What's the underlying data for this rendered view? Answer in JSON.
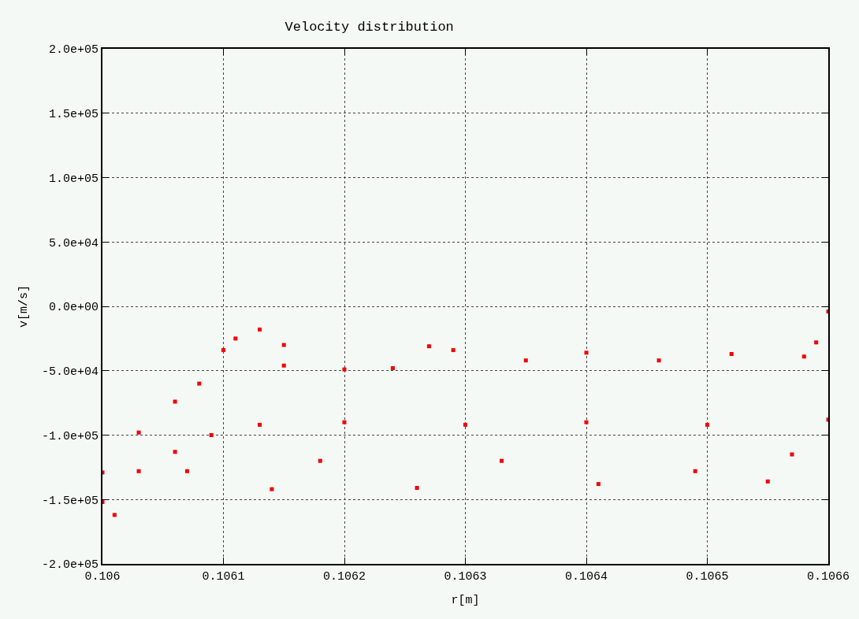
{
  "chart_data": {
    "type": "scatter",
    "title": "Velocity distribution",
    "xlabel": "r[m]",
    "ylabel": "v[m/s]",
    "xlim": [
      0.106,
      0.1066
    ],
    "ylim": [
      -200000,
      200000
    ],
    "xticks": [
      {
        "value": 0.106,
        "label": "0.106"
      },
      0.1061,
      0.1062,
      0.1063,
      0.1064,
      0.1065,
      0.1066
    ],
    "yticks": [
      {
        "value": -200000,
        "label": "-2.0e+05"
      },
      {
        "value": -150000,
        "label": "-1.5e+05"
      },
      {
        "value": -100000,
        "label": "-1.0e+05"
      },
      {
        "value": -50000,
        "label": "-5.0e+04"
      },
      {
        "value": 0,
        "label": "0.0e+00"
      },
      {
        "value": 50000,
        "label": "5.0e+04"
      },
      {
        "value": 100000,
        "label": "1.0e+05"
      },
      {
        "value": 150000,
        "label": "1.5e+05"
      },
      {
        "value": 200000,
        "label": "2.0e+05"
      }
    ],
    "grid": true,
    "marker": "square",
    "legend": false,
    "series": [
      {
        "color": "#f50000",
        "x": [
          0.106,
          0.10603,
          0.10606,
          0.10608,
          0.1061,
          0.10611,
          0.10613,
          0.10615,
          0.10615,
          0.1062,
          0.10624,
          0.10627,
          0.10629,
          0.10635,
          0.1064,
          0.10646,
          0.10652,
          0.10658,
          0.10659,
          0.1066
        ],
        "values": [
          -129000,
          -98000,
          -74000,
          -60000,
          -34000,
          -25000,
          -18000,
          -30000,
          -46000,
          -49000,
          -48000,
          -31000,
          -34000,
          -42000,
          -36000,
          -42000,
          -37000,
          -39000,
          -28000,
          -4000
        ]
      },
      {
        "color": "#f50000",
        "x": [
          0.106,
          0.10603,
          0.10606,
          0.10609,
          0.10613,
          0.1062,
          0.1063,
          0.1064,
          0.1065,
          0.1066
        ],
        "values": [
          -152000,
          -128000,
          -113000,
          -100000,
          -92000,
          -90000,
          -92000,
          -90000,
          -92000,
          -88000
        ]
      },
      {
        "color": "#f50000",
        "x": [
          0.10601,
          0.10607,
          0.10614,
          0.10618,
          0.10626,
          0.10633,
          0.10641,
          0.10649,
          0.10655,
          0.10657
        ],
        "values": [
          -162000,
          -128000,
          -142000,
          -120000,
          -141000,
          -120000,
          -138000,
          -128000,
          -136000,
          -115000
        ]
      }
    ]
  }
}
